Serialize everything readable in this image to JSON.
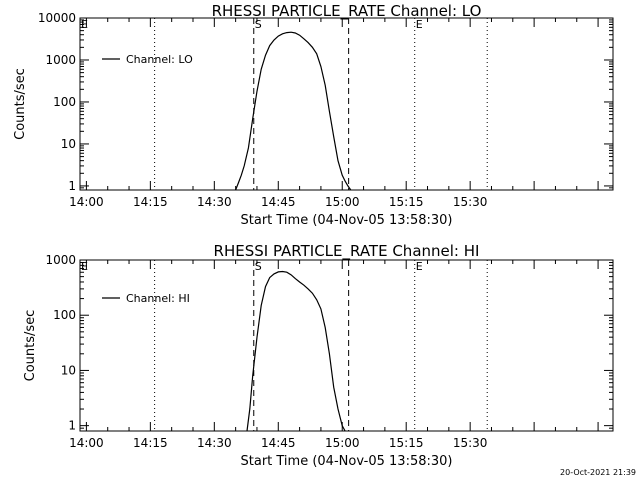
{
  "timestamp": "20-Oct-2021 21:39",
  "chart_data": [
    {
      "type": "line",
      "title": "RHESSI PARTICLE_RATE Channel: LO",
      "xlabel": "Start Time (04-Nov-05 13:58:30)",
      "ylabel": "Counts/sec",
      "yscale": "log",
      "ylim": [
        0.8,
        10000
      ],
      "xlim": [
        "13:58:30",
        "16:03:30"
      ],
      "yticks": [
        "1",
        "10",
        "100",
        "1000",
        "10000"
      ],
      "xticks": [
        "14:00",
        "14:15",
        "14:30",
        "14:45",
        "15:00",
        "15:15",
        "15:30"
      ],
      "legend": {
        "position": "top-left",
        "labels": [
          "Channel: LO"
        ]
      },
      "markers": [
        {
          "label": "E",
          "time": "13:58:30",
          "style": "dotted"
        },
        {
          "label": "",
          "time": "14:16:00",
          "style": "dotted"
        },
        {
          "label": "S",
          "time": "14:39:15",
          "style": "dashed"
        },
        {
          "label": "",
          "time": "15:01:30",
          "style": "dashed"
        },
        {
          "label": "E",
          "time": "15:17:00",
          "style": "dotted"
        },
        {
          "label": "",
          "time": "15:34:00",
          "style": "dotted"
        }
      ],
      "series": [
        {
          "name": "Channel: LO",
          "x": [
            "14:35:00",
            "14:35:40",
            "14:36:20",
            "14:37:00",
            "14:38:00",
            "14:39:00",
            "14:40:00",
            "14:41:00",
            "14:42:00",
            "14:43:00",
            "14:44:00",
            "14:45:00",
            "14:46:00",
            "14:47:00",
            "14:48:00",
            "14:49:00",
            "14:50:00",
            "14:51:00",
            "14:52:00",
            "14:53:00",
            "14:54:00",
            "14:55:00",
            "14:56:00",
            "14:57:00",
            "14:58:00",
            "14:59:00",
            "15:00:00",
            "15:00:40",
            "15:01:20",
            "15:02:00"
          ],
          "values": [
            0.8,
            1.2,
            1.8,
            3.0,
            8,
            40,
            180,
            600,
            1300,
            2200,
            3000,
            3700,
            4200,
            4500,
            4600,
            4400,
            3900,
            3200,
            2600,
            2000,
            1400,
            700,
            250,
            60,
            15,
            4,
            1.8,
            1.3,
            1.0,
            0.8
          ]
        }
      ]
    },
    {
      "type": "line",
      "title": "RHESSI PARTICLE_RATE Channel: HI",
      "xlabel": "Start Time (04-Nov-05 13:58:30)",
      "ylabel": "Counts/sec",
      "yscale": "log",
      "ylim": [
        0.8,
        1000
      ],
      "xlim": [
        "13:58:30",
        "16:03:30"
      ],
      "yticks": [
        "1",
        "10",
        "100",
        "1000"
      ],
      "xticks": [
        "14:00",
        "14:15",
        "14:30",
        "14:45",
        "15:00",
        "15:15",
        "15:30"
      ],
      "legend": {
        "position": "top-left",
        "labels": [
          "Channel: HI"
        ]
      },
      "markers": [
        {
          "label": "E",
          "time": "13:58:30",
          "style": "dotted"
        },
        {
          "label": "",
          "time": "14:16:00",
          "style": "dotted"
        },
        {
          "label": "S",
          "time": "14:39:15",
          "style": "dashed"
        },
        {
          "label": "",
          "time": "15:01:30",
          "style": "dashed"
        },
        {
          "label": "E",
          "time": "15:17:00",
          "style": "dotted"
        },
        {
          "label": "",
          "time": "15:34:00",
          "style": "dotted"
        }
      ],
      "series": [
        {
          "name": "Channel: HI",
          "x": [
            "14:37:40",
            "14:38:20",
            "14:39:00",
            "14:40:00",
            "14:41:00",
            "14:42:00",
            "14:43:00",
            "14:44:00",
            "14:45:00",
            "14:46:00",
            "14:47:00",
            "14:48:00",
            "14:49:00",
            "14:50:00",
            "14:51:00",
            "14:52:00",
            "14:53:00",
            "14:54:00",
            "14:55:00",
            "14:56:00",
            "14:57:00",
            "14:58:00",
            "14:59:00",
            "15:00:00",
            "15:00:40"
          ],
          "values": [
            0.8,
            2,
            8,
            40,
            150,
            330,
            480,
            560,
            610,
            620,
            600,
            540,
            460,
            400,
            350,
            300,
            250,
            190,
            130,
            60,
            20,
            5,
            2,
            1.0,
            0.8
          ]
        }
      ]
    }
  ]
}
